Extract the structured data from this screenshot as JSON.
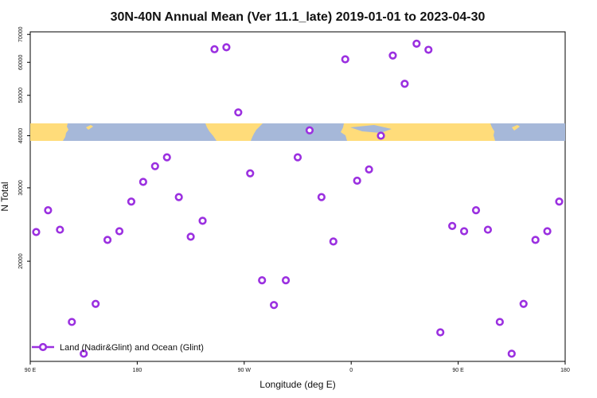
{
  "chart_data": {
    "type": "scatter",
    "title": "30N-40N Annual Mean (Ver 11.1_late)   2019-01-01 to 2023-04-30",
    "xlabel": "Longitude (deg E)",
    "ylabel": "N Total",
    "xlim": [
      -90,
      180
    ],
    "ylim": [
      11500,
      71000
    ],
    "yscale": "log",
    "x_ticks": [
      {
        "value": -90,
        "label": "90 E"
      },
      {
        "value": -36,
        "label": "180"
      },
      {
        "value": 18,
        "label": "90 W"
      },
      {
        "value": 72,
        "label": "0"
      },
      {
        "value": 126,
        "label": "90 E"
      },
      {
        "value": 180,
        "label": "180"
      }
    ],
    "y_ticks": [
      {
        "value": 20000,
        "label": "20000"
      },
      {
        "value": 30000,
        "label": "30000"
      },
      {
        "value": 40000,
        "label": "40000"
      },
      {
        "value": 50000,
        "label": "50000"
      },
      {
        "value": 60000,
        "label": "60000"
      },
      {
        "value": 70000,
        "label": "70000"
      }
    ],
    "series": [
      {
        "name": "Land (Nadir&Glint) and Ocean (Glint)",
        "color": "#9b30e0",
        "x": [
          -87.0,
          -81.0,
          -75.0,
          -69.0,
          -63.0,
          -57.0,
          -51.0,
          -45.0,
          -39.0,
          -33.0,
          -27.0,
          -21.0,
          -15.0,
          -9.0,
          -3.0,
          3.0,
          9.0,
          15.0,
          21.0,
          27.0,
          33.0,
          39.0,
          45.0,
          51.0,
          57.0,
          63.0,
          69.0,
          75.0,
          81.0,
          87.0,
          93.0,
          99.0,
          105.0,
          111.0,
          117.0,
          123.0,
          129.0,
          135.0,
          141.0,
          147.0,
          153.0,
          159.0,
          165.0,
          171.0,
          177.0
        ],
        "y": [
          23500,
          26500,
          23800,
          14300,
          12000,
          15800,
          22500,
          23600,
          27800,
          31000,
          33800,
          35500,
          28500,
          22900,
          25000,
          64500,
          65200,
          45500,
          32500,
          18000,
          15700,
          18000,
          35500,
          41200,
          28500,
          22300,
          61000,
          31200,
          33200,
          40000,
          62300,
          53300,
          66500,
          64300,
          13500,
          24300,
          23600,
          26500,
          23800,
          14300,
          12000,
          15800,
          22500,
          23600,
          27800
        ]
      }
    ]
  },
  "map_strip": {
    "ocean_color": "#a6b8d9",
    "land_color": "#ffdc7a"
  }
}
